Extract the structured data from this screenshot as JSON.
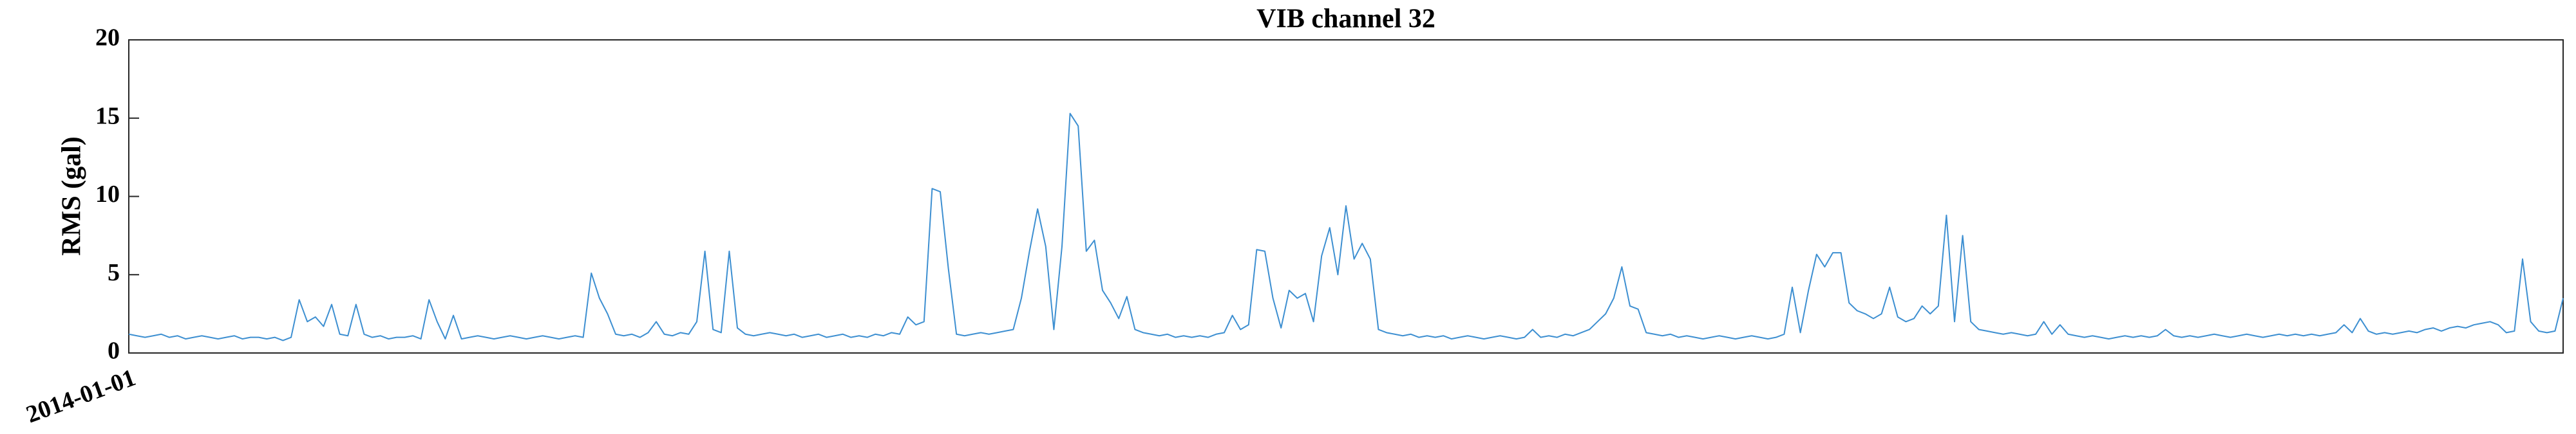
{
  "chart_data": {
    "type": "line",
    "title": "VIB channel 32",
    "ylabel": "RMS (gal)",
    "categories": [
      "2014-01-01",
      null,
      null,
      null,
      null,
      null,
      null,
      null,
      null,
      null,
      null,
      null,
      null,
      null,
      null,
      null,
      null,
      null,
      null,
      null,
      null,
      null,
      null,
      null,
      null,
      null,
      null,
      null,
      null,
      null,
      null,
      null,
      null,
      null,
      null,
      null,
      null,
      null,
      null,
      null,
      null,
      null,
      null,
      null,
      null,
      null,
      null,
      null,
      null,
      null,
      null,
      null,
      null,
      null,
      null,
      null,
      null,
      null,
      null,
      null,
      null,
      null,
      null,
      null,
      null,
      null,
      null,
      null,
      null,
      null,
      null,
      null,
      null,
      null,
      null,
      null,
      null,
      null,
      null,
      null,
      null,
      null,
      null,
      null,
      null,
      null,
      null,
      null,
      null,
      null,
      null,
      null,
      null,
      null,
      null,
      null,
      null,
      null,
      null,
      null,
      null,
      null,
      null,
      null,
      null,
      null,
      null,
      null,
      null,
      null,
      null,
      null,
      null,
      null,
      null,
      null,
      null,
      null,
      null,
      null,
      null,
      null,
      null,
      null,
      null,
      null,
      null,
      null,
      null,
      null,
      null,
      null,
      null,
      null,
      null,
      null,
      null,
      null,
      null,
      null,
      null,
      null,
      null,
      null,
      null,
      null,
      null,
      null,
      null,
      null,
      null,
      null,
      null,
      null,
      null,
      null,
      null,
      null,
      null,
      null,
      null,
      null,
      null,
      null,
      null,
      null,
      null,
      null,
      null,
      null,
      null,
      null,
      null,
      null,
      null,
      null,
      null,
      null,
      null,
      null,
      null,
      null,
      null,
      null,
      null,
      null,
      null,
      null,
      null,
      null,
      null,
      null,
      null,
      null,
      null,
      null,
      null,
      null,
      null,
      null,
      null,
      null,
      null,
      null,
      null,
      null,
      null,
      null,
      null,
      null,
      null,
      null,
      null,
      null,
      null,
      null,
      null,
      null,
      null,
      null,
      null,
      null,
      null,
      null,
      null,
      null,
      null,
      null,
      null,
      null,
      null,
      null,
      null,
      null,
      null,
      null,
      null,
      null,
      null,
      null,
      null,
      null,
      null,
      null,
      null,
      null,
      null,
      null,
      null,
      null,
      null,
      null,
      null,
      null,
      null,
      null,
      null,
      null,
      null,
      null,
      null,
      null,
      null,
      null,
      null,
      null,
      null,
      null,
      null,
      null,
      null,
      null,
      null,
      null,
      null,
      null,
      null,
      null,
      null,
      null,
      null,
      null,
      null,
      null,
      null,
      null,
      null,
      null,
      null,
      null,
      null,
      null,
      null,
      null,
      null,
      null,
      null,
      null,
      null,
      null,
      null
    ],
    "values": [
      1.2,
      1.1,
      1.0,
      1.1,
      1.2,
      1.0,
      1.1,
      0.9,
      1.0,
      1.1,
      1.0,
      0.9,
      1.0,
      1.1,
      0.9,
      1.0,
      1.0,
      0.9,
      1.0,
      0.8,
      1.0,
      3.4,
      2.0,
      2.3,
      1.7,
      3.1,
      1.2,
      1.1,
      3.1,
      1.2,
      1.0,
      1.1,
      0.9,
      1.0,
      1.0,
      1.1,
      0.9,
      3.4,
      2.0,
      0.9,
      2.4,
      0.9,
      1.0,
      1.1,
      1.0,
      0.9,
      1.0,
      1.1,
      1.0,
      0.9,
      1.0,
      1.1,
      1.0,
      0.9,
      1.0,
      1.1,
      1.0,
      5.1,
      3.5,
      2.5,
      1.2,
      1.1,
      1.2,
      1.0,
      1.3,
      2.0,
      1.2,
      1.1,
      1.3,
      1.2,
      2.0,
      6.5,
      1.5,
      1.3,
      6.5,
      1.6,
      1.2,
      1.1,
      1.2,
      1.3,
      1.2,
      1.1,
      1.2,
      1.0,
      1.1,
      1.2,
      1.0,
      1.1,
      1.2,
      1.0,
      1.1,
      1.0,
      1.2,
      1.1,
      1.3,
      1.2,
      2.3,
      1.8,
      2.0,
      10.5,
      10.3,
      5.4,
      1.2,
      1.1,
      1.2,
      1.3,
      1.2,
      1.3,
      1.4,
      1.5,
      3.5,
      6.5,
      9.2,
      6.8,
      1.5,
      6.8,
      15.3,
      14.5,
      6.5,
      7.2,
      4.0,
      3.2,
      2.2,
      3.6,
      1.5,
      1.3,
      1.2,
      1.1,
      1.2,
      1.0,
      1.1,
      1.0,
      1.1,
      1.0,
      1.2,
      1.3,
      2.4,
      1.5,
      1.8,
      6.6,
      6.5,
      3.5,
      1.6,
      4.0,
      3.5,
      3.8,
      2.0,
      6.2,
      8.0,
      5.0,
      9.4,
      6.0,
      7.0,
      6.0,
      1.5,
      1.3,
      1.2,
      1.1,
      1.2,
      1.0,
      1.1,
      1.0,
      1.1,
      0.9,
      1.0,
      1.1,
      1.0,
      0.9,
      1.0,
      1.1,
      1.0,
      0.9,
      1.0,
      1.5,
      1.0,
      1.1,
      1.0,
      1.2,
      1.1,
      1.3,
      1.5,
      2.0,
      2.5,
      3.5,
      5.5,
      3.0,
      2.8,
      1.3,
      1.2,
      1.1,
      1.2,
      1.0,
      1.1,
      1.0,
      0.9,
      1.0,
      1.1,
      1.0,
      0.9,
      1.0,
      1.1,
      1.0,
      0.9,
      1.0,
      1.2,
      4.2,
      1.3,
      4.0,
      6.3,
      5.5,
      6.4,
      6.4,
      3.2,
      2.7,
      2.5,
      2.2,
      2.5,
      4.2,
      2.3,
      2.0,
      2.2,
      3.0,
      2.5,
      3.0,
      8.8,
      2.0,
      7.5,
      2.0,
      1.5,
      1.4,
      1.3,
      1.2,
      1.3,
      1.2,
      1.1,
      1.2,
      2.0,
      1.2,
      1.8,
      1.2,
      1.1,
      1.0,
      1.1,
      1.0,
      0.9,
      1.0,
      1.1,
      1.0,
      1.1,
      1.0,
      1.1,
      1.5,
      1.1,
      1.0,
      1.1,
      1.0,
      1.1,
      1.2,
      1.1,
      1.0,
      1.1,
      1.2,
      1.1,
      1.0,
      1.1,
      1.2,
      1.1,
      1.2,
      1.1,
      1.2,
      1.1,
      1.2,
      1.3,
      1.8,
      1.3,
      2.2,
      1.4,
      1.2,
      1.3,
      1.2,
      1.3,
      1.4,
      1.3,
      1.5,
      1.6,
      1.4,
      1.6,
      1.7,
      1.6,
      1.8,
      1.9,
      2.0,
      1.8,
      1.3,
      1.4,
      6.0,
      2.0,
      1.4,
      1.3,
      1.4,
      3.5
    ],
    "color": "#3d8fd1",
    "ylim": [
      0,
      20
    ],
    "yticks": [
      0,
      5,
      10,
      15,
      20
    ],
    "grid": false
  }
}
